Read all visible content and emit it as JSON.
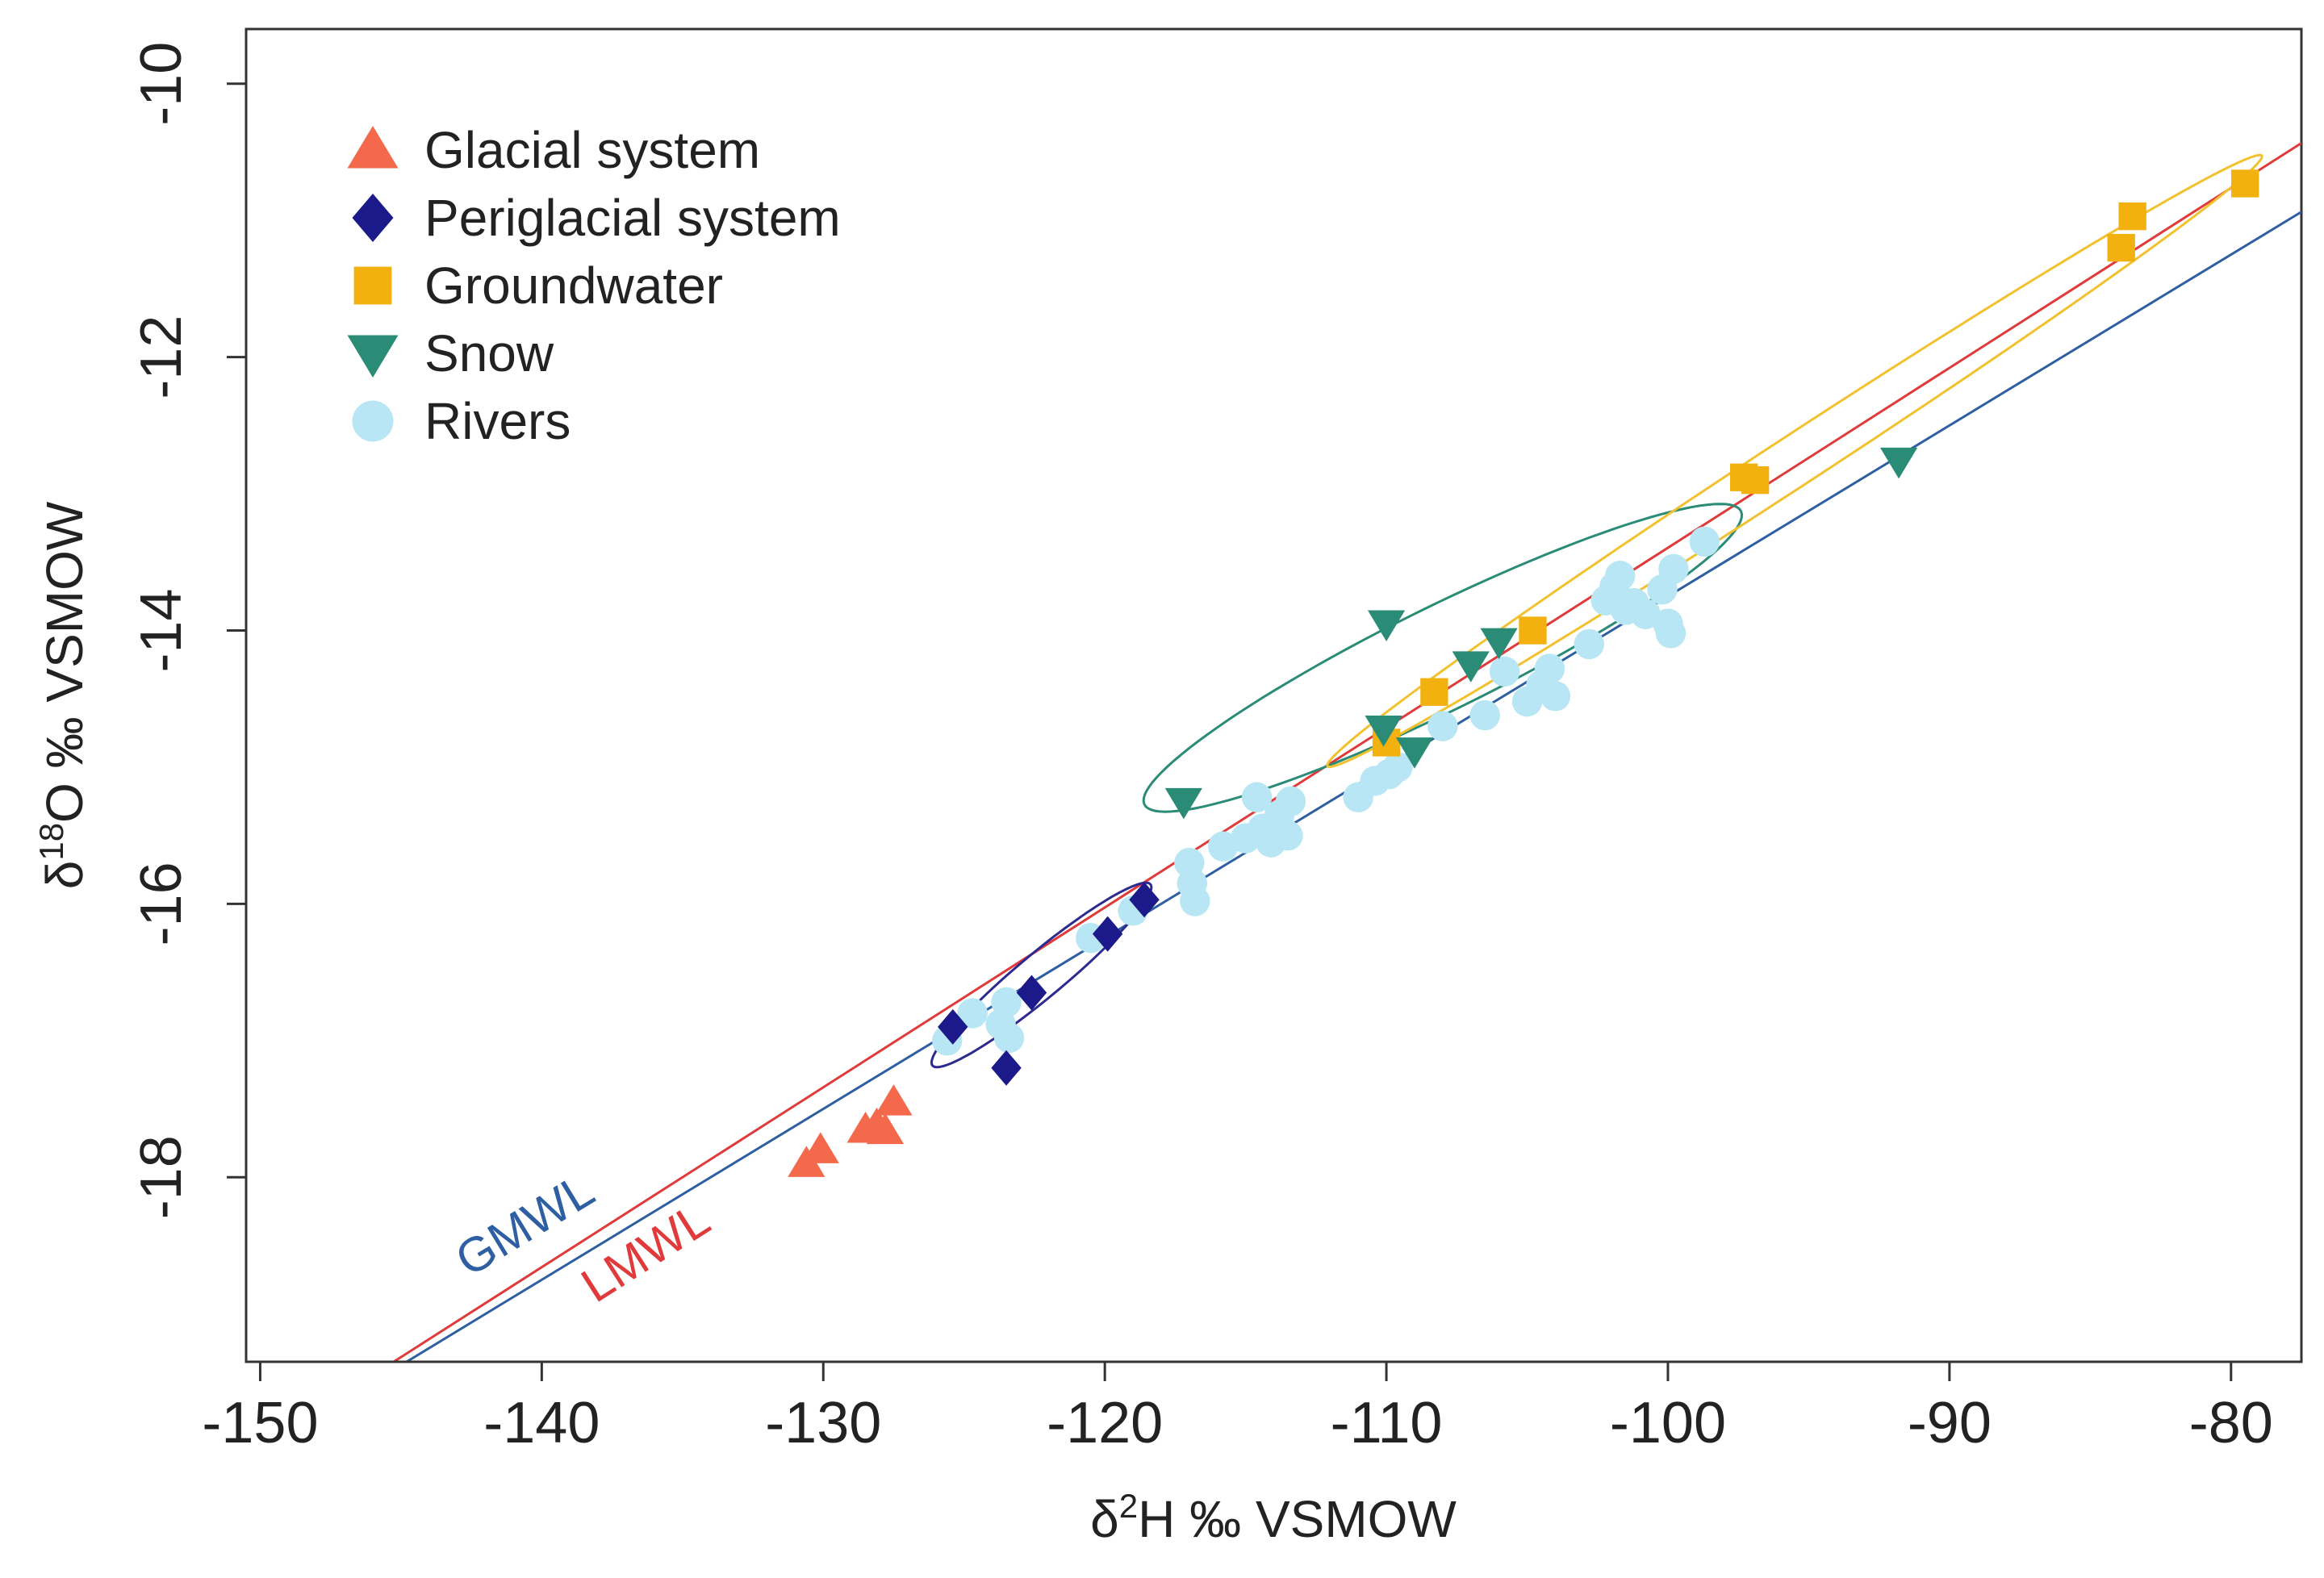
{
  "chart_data": {
    "type": "scatter",
    "title": "",
    "xlabel": {
      "delta": "δ",
      "sup": "2",
      "rest": "H ‰ VSMOW"
    },
    "ylabel": {
      "delta": "δ",
      "sup": "18",
      "rest": "O ‰ VSMOW"
    },
    "xlim": [
      -150.5,
      -77.5
    ],
    "ylim": [
      -19.35,
      -9.6
    ],
    "xticks": [
      -150,
      -140,
      -130,
      -120,
      -110,
      -100,
      -90,
      -80
    ],
    "yticks": [
      -10,
      -12,
      -14,
      -16,
      -18
    ],
    "xtick_labels": [
      "-150",
      "-140",
      "-130",
      "-120",
      "-110",
      "-100",
      "-90",
      "-80"
    ],
    "ytick_labels": [
      "-10",
      "-12",
      "-14",
      "-16",
      "-18"
    ],
    "grid": false,
    "legend_position": "top-left",
    "series": [
      {
        "name": "Glacial system",
        "marker": "triangle-up",
        "color": "#f4694b",
        "points": [
          [
            -130.6,
            -17.9
          ],
          [
            -130.1,
            -17.8
          ],
          [
            -128.5,
            -17.65
          ],
          [
            -128.1,
            -17.62
          ],
          [
            -127.8,
            -17.66
          ],
          [
            -127.5,
            -17.45
          ]
        ]
      },
      {
        "name": "Periglacial system",
        "marker": "diamond",
        "color": "#1c1a8a",
        "points": [
          [
            -125.4,
            -16.9
          ],
          [
            -123.5,
            -17.2
          ],
          [
            -122.6,
            -16.65
          ],
          [
            -119.9,
            -16.22
          ],
          [
            -118.6,
            -15.97
          ]
        ]
      },
      {
        "name": "Groundwater",
        "marker": "square",
        "color": "#f2b10f",
        "points": [
          [
            -110.0,
            -14.82
          ],
          [
            -108.3,
            -14.45
          ],
          [
            -104.8,
            -14.0
          ],
          [
            -97.3,
            -12.88
          ],
          [
            -96.9,
            -12.9
          ],
          [
            -83.9,
            -11.2
          ],
          [
            -83.5,
            -10.97
          ],
          [
            -79.5,
            -10.73
          ]
        ]
      },
      {
        "name": "Snow",
        "marker": "triangle-down",
        "color": "#2a8c77",
        "points": [
          [
            -117.2,
            -15.25
          ],
          [
            -110.0,
            -13.95
          ],
          [
            -110.1,
            -14.72
          ],
          [
            -109.0,
            -14.88
          ],
          [
            -107.0,
            -14.25
          ],
          [
            -106.0,
            -14.08
          ],
          [
            -91.8,
            -12.76
          ]
        ]
      },
      {
        "name": "Rivers",
        "marker": "circle",
        "color": "#b8e6f4",
        "points": [
          [
            -125.6,
            -17.0
          ],
          [
            -124.7,
            -16.8
          ],
          [
            -123.7,
            -16.88
          ],
          [
            -123.5,
            -16.72
          ],
          [
            -123.4,
            -16.98
          ],
          [
            -120.5,
            -16.25
          ],
          [
            -119.0,
            -16.05
          ],
          [
            -117.0,
            -15.7
          ],
          [
            -116.9,
            -15.85
          ],
          [
            -116.8,
            -15.98
          ],
          [
            -115.8,
            -15.58
          ],
          [
            -115.0,
            -15.52
          ],
          [
            -114.6,
            -15.22
          ],
          [
            -114.4,
            -15.45
          ],
          [
            -114.1,
            -15.55
          ],
          [
            -113.8,
            -15.35
          ],
          [
            -113.5,
            -15.5
          ],
          [
            -113.4,
            -15.25
          ],
          [
            -111.0,
            -15.22
          ],
          [
            -110.4,
            -15.1
          ],
          [
            -109.9,
            -15.05
          ],
          [
            -109.6,
            -15.0
          ],
          [
            -108.0,
            -14.7
          ],
          [
            -106.5,
            -14.62
          ],
          [
            -105.8,
            -14.3
          ],
          [
            -105.0,
            -14.52
          ],
          [
            -104.5,
            -14.4
          ],
          [
            -104.2,
            -14.28
          ],
          [
            -104.0,
            -14.48
          ],
          [
            -102.8,
            -14.1
          ],
          [
            -102.2,
            -13.78
          ],
          [
            -101.9,
            -13.68
          ],
          [
            -101.7,
            -13.6
          ],
          [
            -101.5,
            -13.85
          ],
          [
            -101.2,
            -13.8
          ],
          [
            -100.8,
            -13.88
          ],
          [
            -100.2,
            -13.7
          ],
          [
            -100.0,
            -13.95
          ],
          [
            -99.9,
            -14.02
          ],
          [
            -99.8,
            -13.55
          ],
          [
            -98.7,
            -13.35
          ]
        ]
      }
    ],
    "ellipses": [
      {
        "name": "Periglacial ellipse",
        "color": "#2d2a8f",
        "center": [
          -122.25,
          -16.52
        ],
        "axis1": [
          3.9,
          0.65
        ],
        "axis2": [
          -0.18,
          0.18
        ]
      },
      {
        "name": "Snow ellipse",
        "color": "#2a8c77",
        "center": [
          -108.0,
          -14.2
        ],
        "axis1": [
          10.6,
          1.07
        ],
        "axis2": [
          -0.72,
          0.35
        ]
      },
      {
        "name": "Groundwater ellipse",
        "color": "#f2c12e",
        "center": [
          -95.5,
          -12.76
        ],
        "axis1": [
          16.6,
          2.23
        ],
        "axis2": [
          -0.22,
          0.19
        ]
      }
    ],
    "lines": [
      {
        "name": "GMWL",
        "label": "GMWL",
        "color": "#2e5fa3",
        "slope": 8,
        "intercept": 10,
        "label_at": [
          -140.3,
          -18.45
        ]
      },
      {
        "name": "LMWL",
        "label": "LMWL",
        "color": "#e03a3a",
        "slope": 7.6,
        "intercept": 1.8,
        "label_at": [
          -136.0,
          -18.65
        ]
      }
    ]
  }
}
